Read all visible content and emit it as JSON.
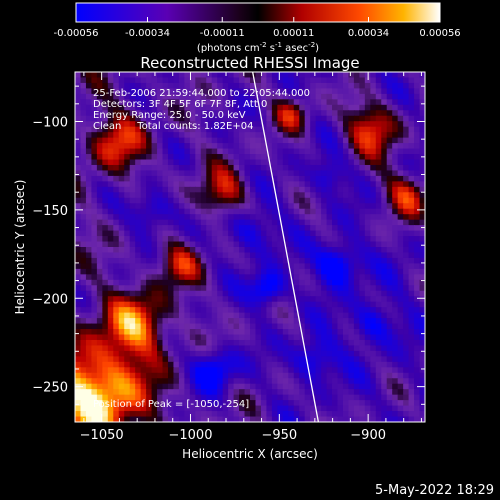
{
  "chart_data": {
    "type": "heatmap",
    "title": "Reconstructed RHESSI Image",
    "xlabel": "Heliocentric X (arcsec)",
    "ylabel": "Heliocentric Y (arcsec)",
    "xlim": [
      -1065,
      -868
    ],
    "ylim": [
      -270,
      -72
    ],
    "xticks": [
      -1050,
      -1000,
      -950,
      -900
    ],
    "yticks": [
      -100,
      -150,
      -200,
      -250
    ],
    "colorbar": {
      "ticks": [
        "-0.00056",
        "-0.00034",
        "-0.00011",
        "0.00011",
        "0.00034",
        "0.00056"
      ],
      "range": [
        -0.00056,
        0.00056
      ],
      "label_main": "(photons cm",
      "label_sup1": "-2",
      "label_mid1": " s",
      "label_sup2": "-1",
      "label_mid2": " asec",
      "label_sup3": "-2",
      "label_end": ")"
    },
    "annotations": [
      "25-Feb-2006 21:59:44.000 to 22:05:44.000",
      "Detectors: 3F 4F 5F 6F 7F 8F, Att 0",
      "Energy Range: 25.0 - 50.0 keV",
      "Clean     Total counts: 1.82E+04"
    ],
    "peak_label": "Position of Peak = [-1050,-254]",
    "peak": [
      -1050,
      -254
    ],
    "limb_line": [
      [
        -965,
        -72
      ],
      [
        -928,
        -270
      ]
    ]
  },
  "footer": {
    "date": "5-May-2022 18:29"
  }
}
